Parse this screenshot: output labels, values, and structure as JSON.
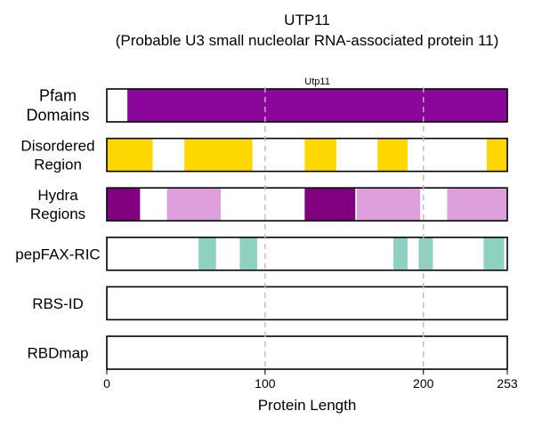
{
  "title_line1": "UTP11",
  "title_line2": "(Probable U3 small nucleolar RNA-associated protein 11)",
  "chart_data": {
    "type": "bar",
    "protein_length": 253,
    "x_range": [
      0,
      253
    ],
    "x_ticks": [
      0,
      100,
      200,
      253
    ],
    "x_label": "Protein Length",
    "vertical_gridlines_at": [
      100,
      200
    ],
    "tracks": [
      {
        "label_lines": [
          "Pfam",
          "Domains"
        ],
        "style": "pfam",
        "segments": [
          {
            "start": 13,
            "end": 253,
            "color": "#8B069B",
            "label": "Utp11"
          }
        ]
      },
      {
        "label_lines": [
          "Disordered",
          "Region"
        ],
        "style": "normal",
        "segments": [
          {
            "start": 0,
            "end": 29,
            "color": "#FFD700"
          },
          {
            "start": 49,
            "end": 92,
            "color": "#FFD700"
          },
          {
            "start": 125,
            "end": 145,
            "color": "#FFD700"
          },
          {
            "start": 171,
            "end": 190,
            "color": "#FFD700"
          },
          {
            "start": 240,
            "end": 253,
            "color": "#FFD700"
          }
        ]
      },
      {
        "label_lines": [
          "Hydra",
          "Regions"
        ],
        "style": "normal",
        "segments": [
          {
            "start": 0,
            "end": 21,
            "color": "#800080"
          },
          {
            "start": 38,
            "end": 72,
            "color": "#DDA0DD"
          },
          {
            "start": 125,
            "end": 157,
            "color": "#800080"
          },
          {
            "start": 158,
            "end": 198,
            "color": "#DDA0DD"
          },
          {
            "start": 215,
            "end": 253,
            "color": "#DDA0DD"
          }
        ]
      },
      {
        "label_lines": [
          "pepFAX-RIC"
        ],
        "style": "normal",
        "segments": [
          {
            "start": 58,
            "end": 69,
            "color": "#8FD1C0"
          },
          {
            "start": 84,
            "end": 95,
            "color": "#8FD1C0"
          },
          {
            "start": 181,
            "end": 190,
            "color": "#8FD1C0"
          },
          {
            "start": 197,
            "end": 206,
            "color": "#8FD1C0"
          },
          {
            "start": 238,
            "end": 251,
            "color": "#8FD1C0"
          }
        ]
      },
      {
        "label_lines": [
          "RBS-ID"
        ],
        "style": "normal",
        "segments": []
      },
      {
        "label_lines": [
          "RBDmap"
        ],
        "style": "normal",
        "segments": []
      }
    ]
  }
}
